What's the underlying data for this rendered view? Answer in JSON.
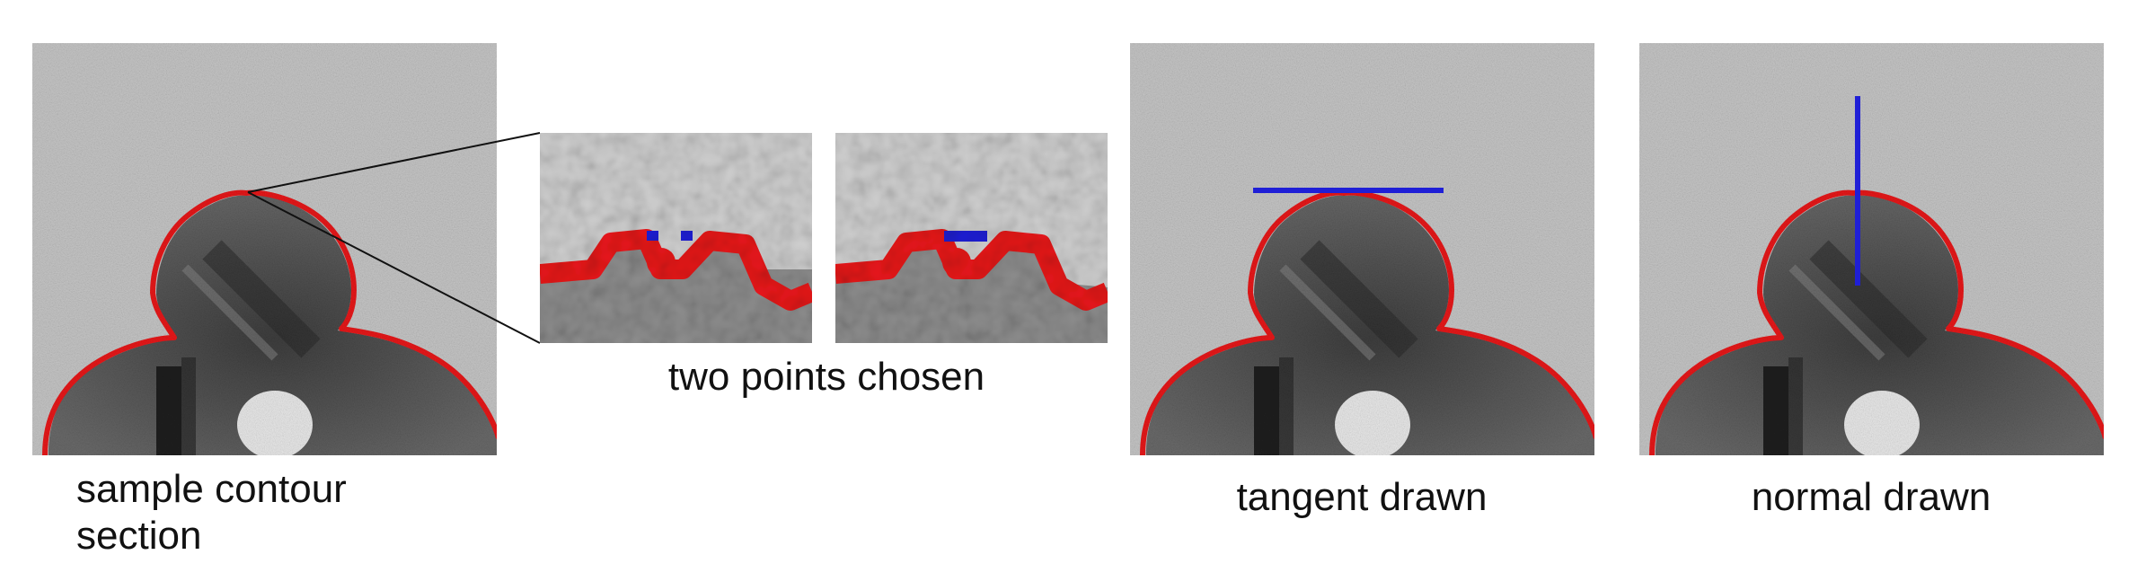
{
  "captions": {
    "sample": "sample contour section",
    "two_points": "two points chosen",
    "tangent": "tangent drawn",
    "normal": "normal drawn"
  },
  "colors": {
    "contour": "#e8191b",
    "markers": "#1f1fd6",
    "background": "#c9c9c9",
    "particle": "#5a5a5a"
  }
}
